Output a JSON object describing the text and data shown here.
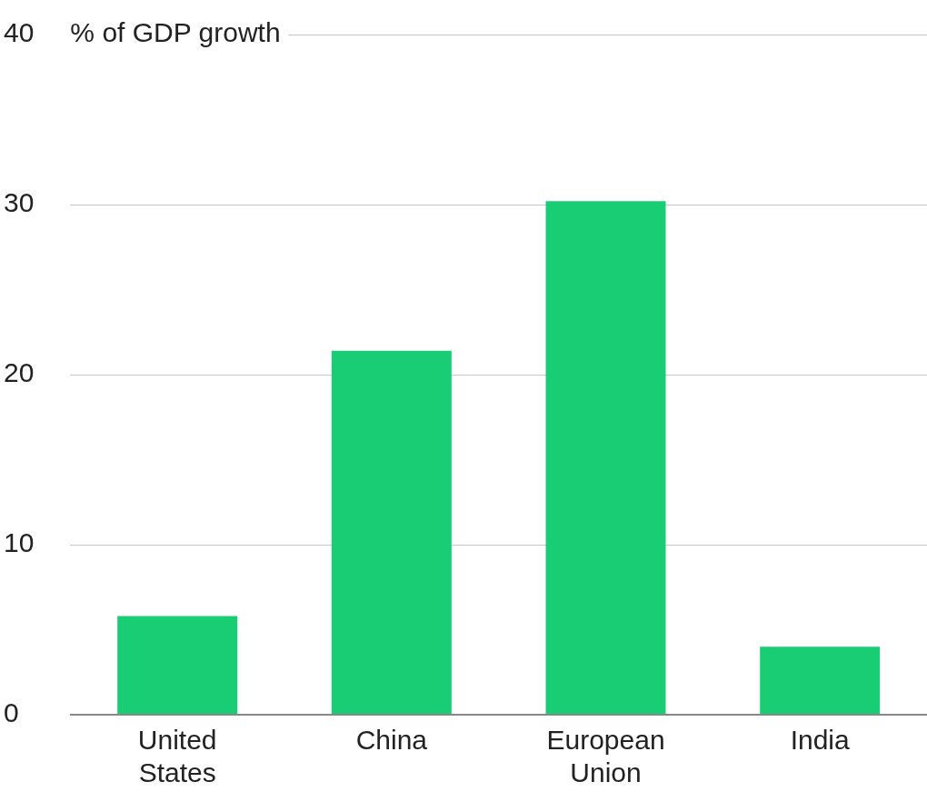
{
  "chart_data": {
    "type": "bar",
    "ylabel": "% of GDP growth",
    "categories": [
      "United States",
      "China",
      "European Union",
      "India"
    ],
    "values": [
      5.8,
      21.4,
      30.2,
      4.0
    ],
    "color": "#18cd74",
    "ylim": [
      0,
      40
    ],
    "yticks": [
      0,
      10,
      20,
      30,
      40
    ],
    "grid": "y",
    "legend": false
  }
}
